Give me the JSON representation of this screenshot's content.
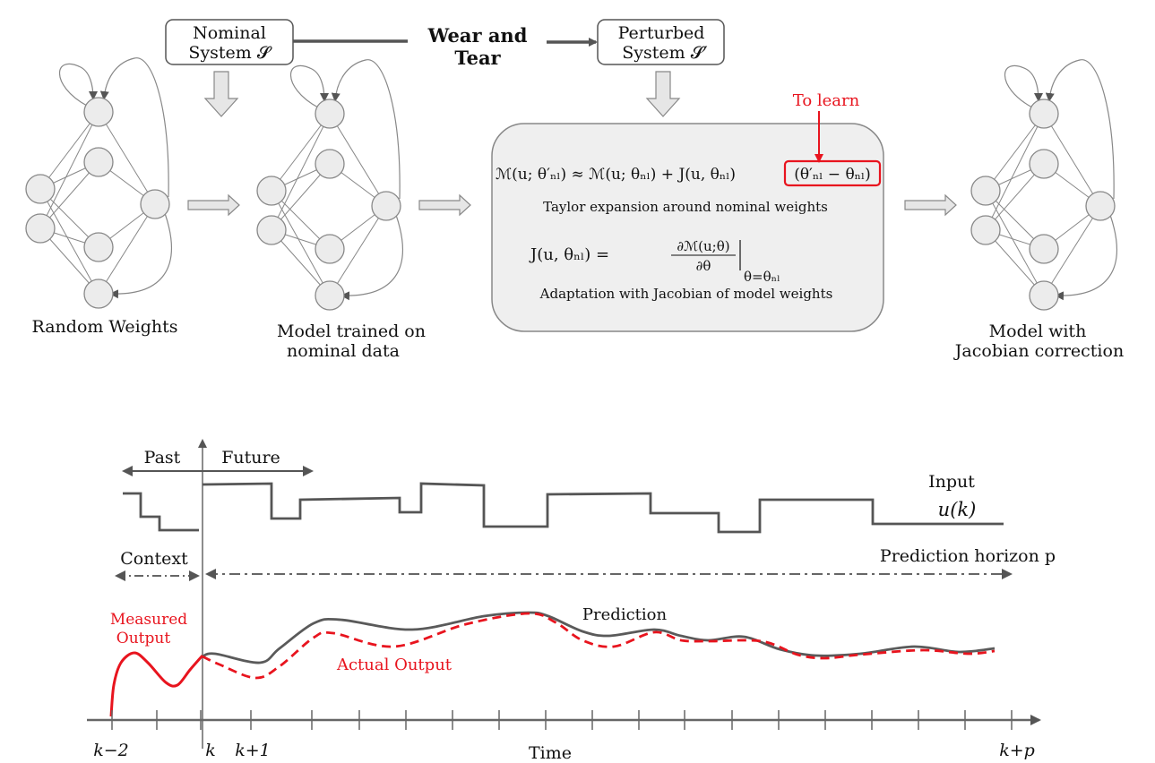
{
  "top": {
    "nominal_box": [
      "Nominal",
      "System 𝓢"
    ],
    "wear_label": [
      "Wear and",
      "Tear"
    ],
    "perturbed_box": [
      "Perturbed",
      "System 𝓢′"
    ],
    "to_learn": "To learn",
    "formula_main": "ℳ(u; θ′ₙₗ) ≈ ℳ(u; θₙₗ) + J(u, θₙₗ)",
    "formula_highlight": "(θ′ₙₗ − θₙₗ)",
    "taylor_caption": "Taylor expansion around nominal weights",
    "jacobian_formula": "J(u, θₙₗ) =",
    "jacobian_num": "∂ℳ(u;θ)",
    "jacobian_den": "∂θ",
    "jacobian_eval": "θ=θₙₗ",
    "adaptation_caption": "Adaptation with Jacobian of model weights",
    "networks": [
      {
        "label": [
          "Random Weights"
        ]
      },
      {
        "label": [
          "Model trained on",
          "nominal data"
        ]
      },
      {
        "label": [
          "Model with",
          "Jacobian correction"
        ]
      }
    ]
  },
  "bottom": {
    "past": "Past",
    "future": "Future",
    "input": "Input",
    "input_symbol": "u(k)",
    "context": "Context",
    "prediction_horizon": "Prediction horizon p",
    "measured": [
      "Measured",
      "Output"
    ],
    "prediction": "Prediction",
    "actual": "Actual Output",
    "x_ticks": [
      "k−2",
      "k",
      "k+1",
      "k+p"
    ],
    "x_label": "Time"
  },
  "colors": {
    "red": "#e8141e",
    "grey": "#5a5a5a",
    "box_fill": "#efefef"
  }
}
